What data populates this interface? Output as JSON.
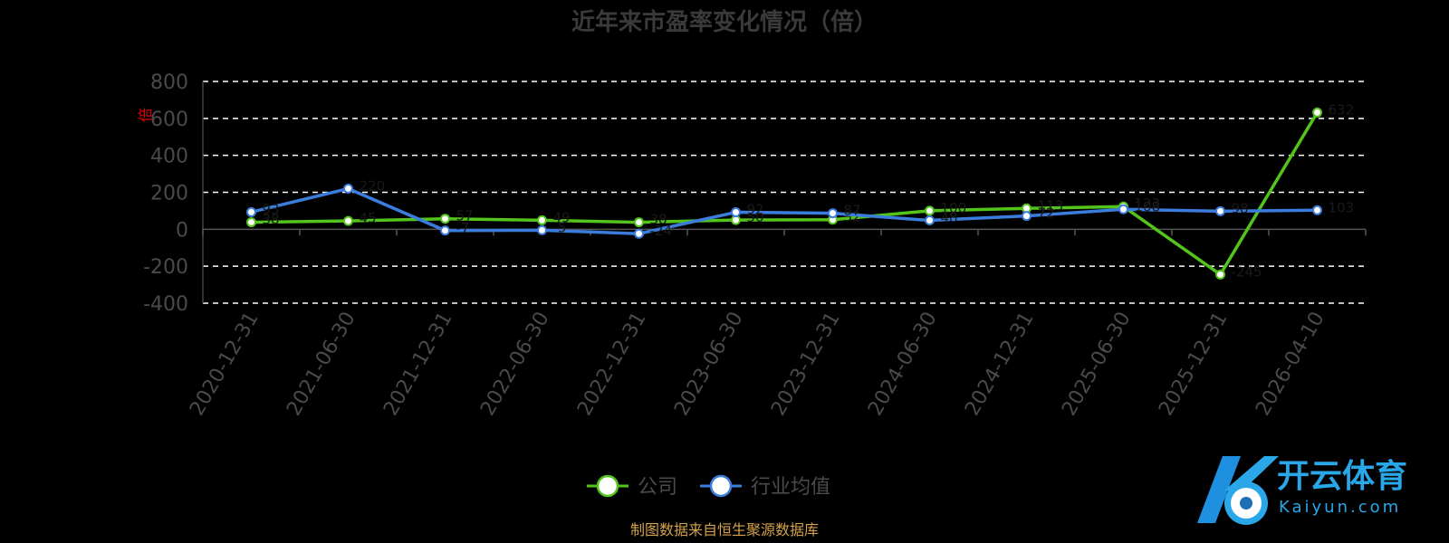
{
  "chart_data": {
    "type": "line",
    "title": "近年来市盈率变化情况（倍）",
    "ylabel": "倍",
    "ylim": [
      -400,
      800
    ],
    "yticks": [
      800,
      600,
      400,
      200,
      0,
      -200,
      -400
    ],
    "grid": true,
    "categories": [
      "2020-12-31",
      "2021-06-30",
      "2021-12-31",
      "2022-06-30",
      "2022-12-31",
      "2023-06-30",
      "2023-12-31",
      "2024-06-30",
      "2024-12-31",
      "2025-06-30",
      "2025-12-31",
      "2026-04-10"
    ],
    "series": [
      {
        "name": "公司",
        "color": "#52c41a",
        "values": [
          38,
          45,
          57,
          49,
          38,
          50,
          52,
          100,
          113,
          123,
          -245,
          632
        ]
      },
      {
        "name": "行业均值",
        "color": "#3b7ddd",
        "values": [
          93,
          220,
          -7,
          -5,
          -24,
          92,
          87,
          48,
          72,
          108,
          98,
          103
        ]
      }
    ],
    "legend_position": "bottom-center",
    "source": "制图数据来自恒生聚源数据库"
  },
  "watermark": {
    "name": "开云体育",
    "sub": "Kaiyun.com"
  }
}
